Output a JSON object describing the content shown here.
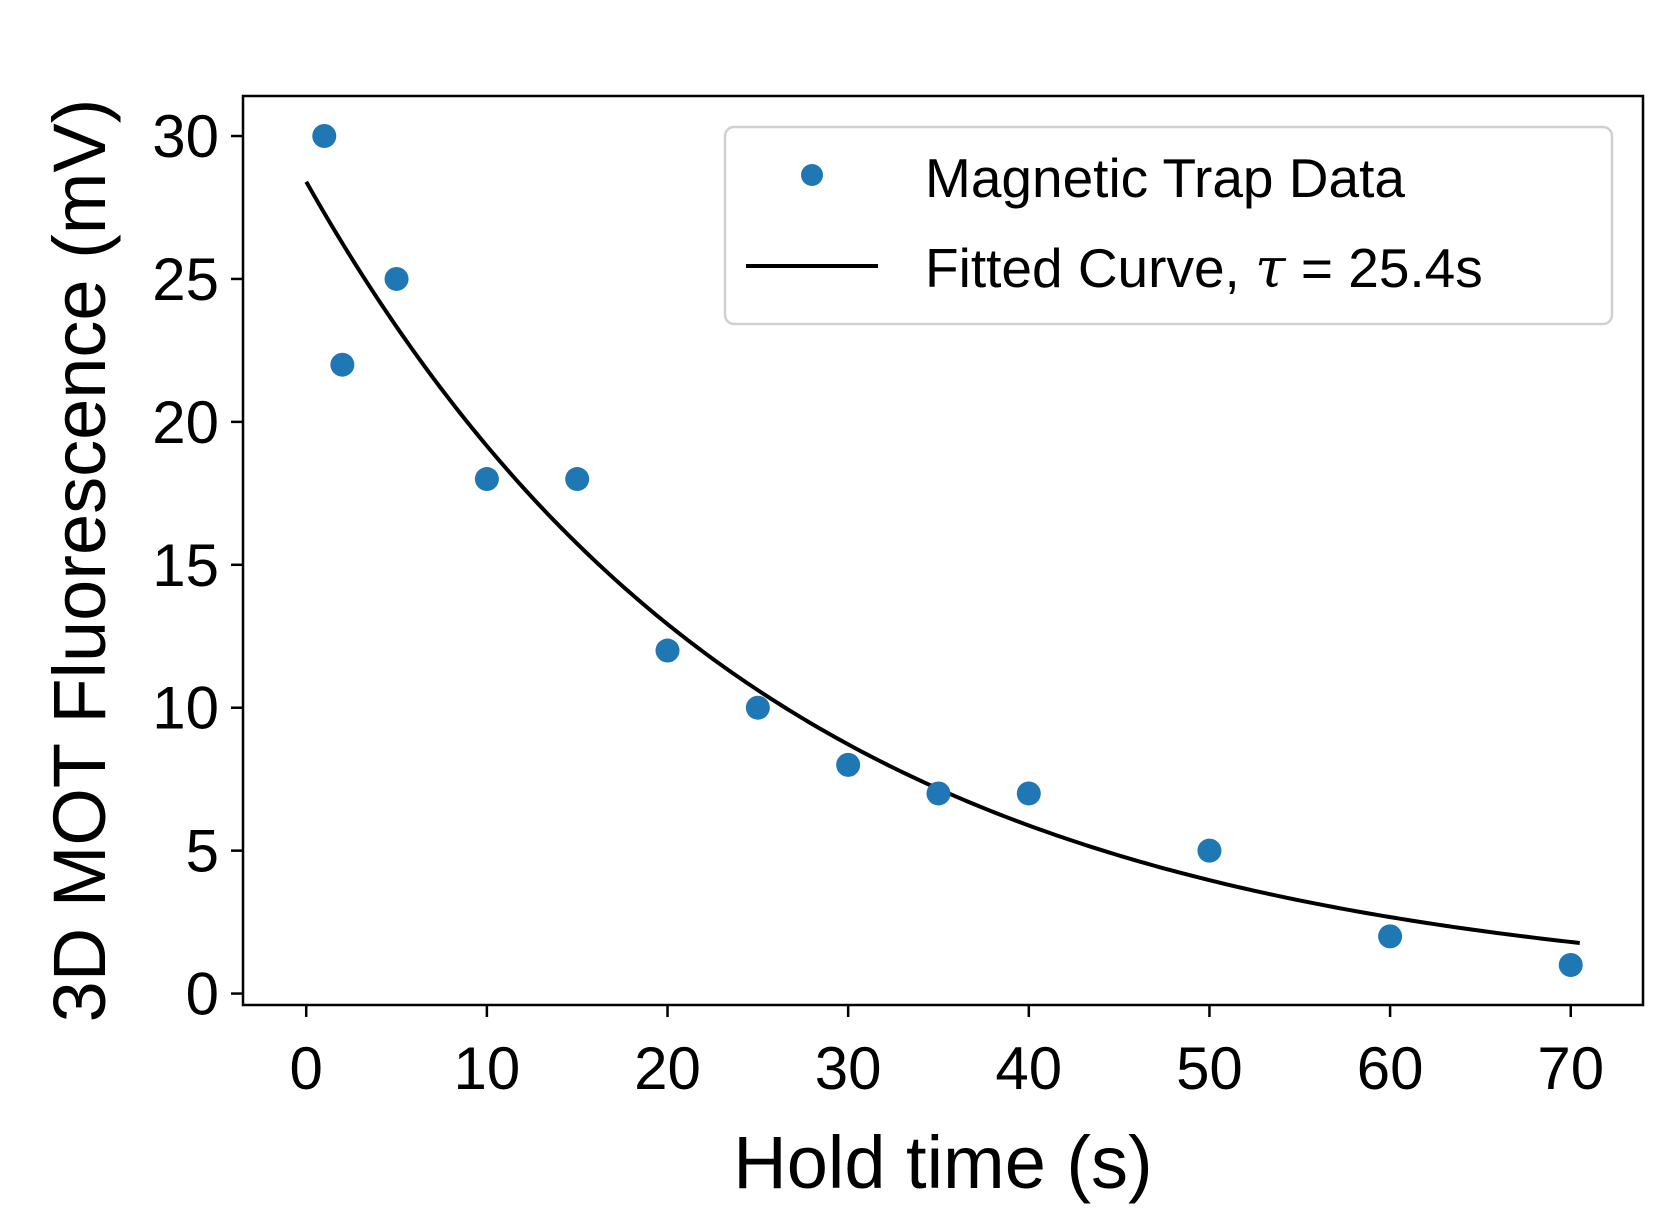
{
  "chart_data": {
    "type": "scatter",
    "title": "",
    "xlabel": "Hold time (s)",
    "ylabel": "3D MOT Fluorescence (mV)",
    "xlim": [
      -3.5,
      74
    ],
    "ylim": [
      -0.4,
      31.4
    ],
    "xticks": [
      0,
      10,
      20,
      30,
      40,
      50,
      60,
      70
    ],
    "yticks": [
      0,
      5,
      10,
      15,
      20,
      25,
      30
    ],
    "grid": false,
    "legend_position": "top-right",
    "series": [
      {
        "name": "Magnetic Trap Data",
        "kind": "scatter",
        "color": "#1f77b4",
        "x": [
          1,
          2,
          5,
          10,
          15,
          20,
          25,
          30,
          35,
          40,
          50,
          60,
          70
        ],
        "y": [
          30,
          22,
          25,
          18,
          18,
          12,
          10,
          8,
          7,
          7,
          5,
          2,
          1
        ]
      },
      {
        "name_prefix": "Fitted Curve, ",
        "name_symbol": "τ",
        "name_suffix": " = 25.4s",
        "kind": "line",
        "color": "#000000",
        "model": "exponential_decay",
        "amplitude": 28.4,
        "tau": 25.4,
        "x_range": [
          0,
          70.5
        ]
      }
    ]
  }
}
